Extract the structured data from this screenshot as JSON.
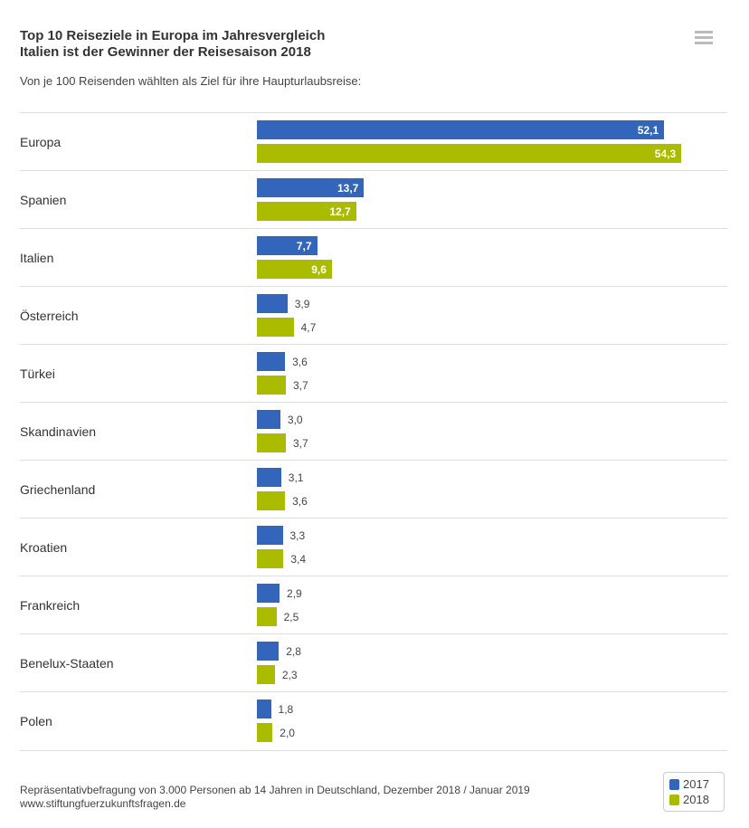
{
  "title_line1": "Top 10 Reiseziele in Europa im Jahresvergleich",
  "title_line2": "Italien ist der Gewinner der Reisesaison 2018",
  "subtitle": "Von je 100 Reisenden wählten als Ziel für ihre Haupturlaubsreise:",
  "menu_icon": "hamburger-menu-icon",
  "footer_line1": "Repräsentativbefragung von 3.000 Personen ab 14 Jahren in Deutschland, Dezember 2018 / Januar 2019",
  "footer_line2": "www.stiftungfuerzukunftsfragen.de",
  "chart_data": {
    "type": "bar",
    "orientation": "horizontal",
    "categories": [
      "Europa",
      "Spanien",
      "Italien",
      "Österreich",
      "Türkei",
      "Skandinavien",
      "Griechenland",
      "Kroatien",
      "Frankreich",
      "Benelux-Staaten",
      "Polen"
    ],
    "series": [
      {
        "name": "2017",
        "color": "#3366bb",
        "values": [
          52.1,
          13.7,
          7.7,
          3.9,
          3.6,
          3.0,
          3.1,
          3.3,
          2.9,
          2.8,
          1.8
        ],
        "labels": [
          "52,1",
          "13,7",
          "7,7",
          "3,9",
          "3,6",
          "3,0",
          "3,1",
          "3,3",
          "2,9",
          "2,8",
          "1,8"
        ]
      },
      {
        "name": "2018",
        "color": "#aabb00",
        "values": [
          54.3,
          12.7,
          9.6,
          4.7,
          3.7,
          3.7,
          3.6,
          3.4,
          2.5,
          2.3,
          2.0
        ],
        "labels": [
          "54,3",
          "12,7",
          "9,6",
          "4,7",
          "3,7",
          "3,7",
          "3,6",
          "3,4",
          "2,5",
          "2,3",
          "2,0"
        ]
      }
    ],
    "legend": "bottom-right",
    "grid": false
  }
}
